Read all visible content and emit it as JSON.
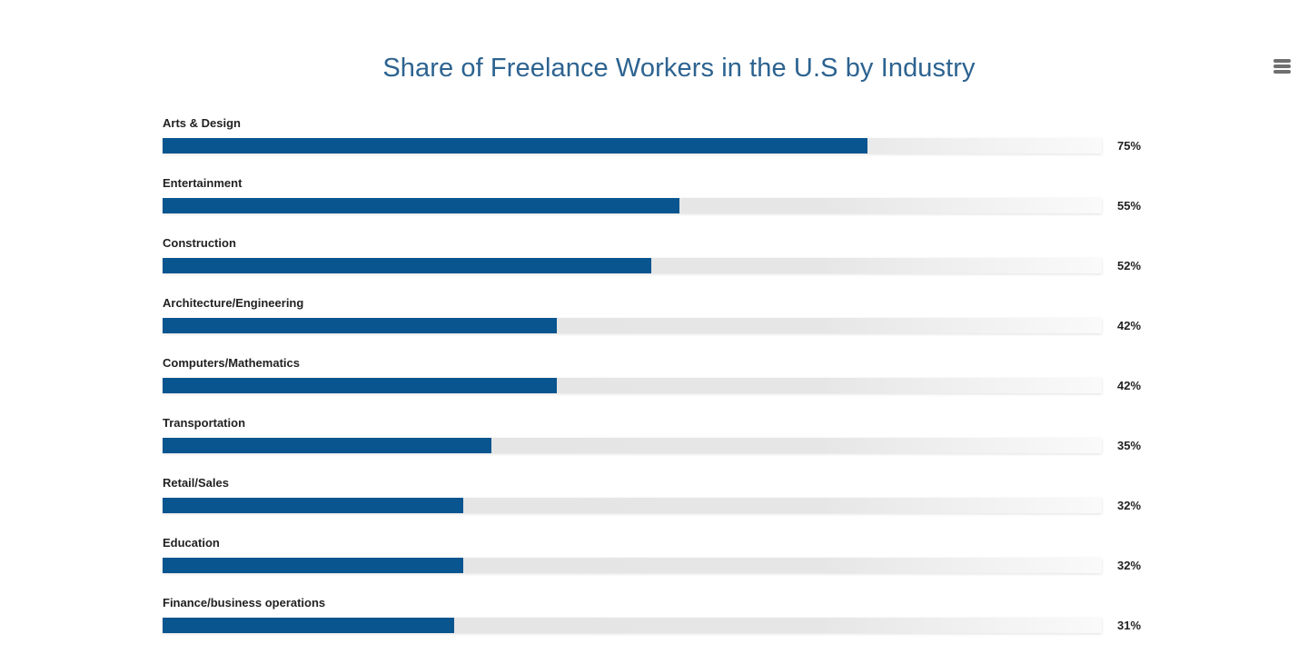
{
  "menu": {
    "icon": "hamburger-menu-icon"
  },
  "colors": {
    "title": "#2d6390",
    "bar_fill": "#08558f",
    "bar_track": "#e5e5e5",
    "label": "#222222",
    "menu_icon": "#6f6f6f"
  },
  "chart_data": {
    "type": "bar",
    "orientation": "horizontal",
    "title": "Share of Freelance Workers in the U.S by Industry",
    "xlabel": "",
    "ylabel": "",
    "xlim": [
      0,
      100
    ],
    "grid": false,
    "legend": "none",
    "categories": [
      "Arts & Design",
      "Entertainment",
      "Construction",
      "Architecture/Engineering",
      "Computers/Mathematics",
      "Transportation",
      "Retail/Sales",
      "Education",
      "Finance/business operations"
    ],
    "values": [
      75,
      55,
      52,
      42,
      42,
      35,
      32,
      32,
      31
    ],
    "value_labels": [
      "75%",
      "55%",
      "52%",
      "42%",
      "42%",
      "35%",
      "32%",
      "32%",
      "31%"
    ]
  }
}
